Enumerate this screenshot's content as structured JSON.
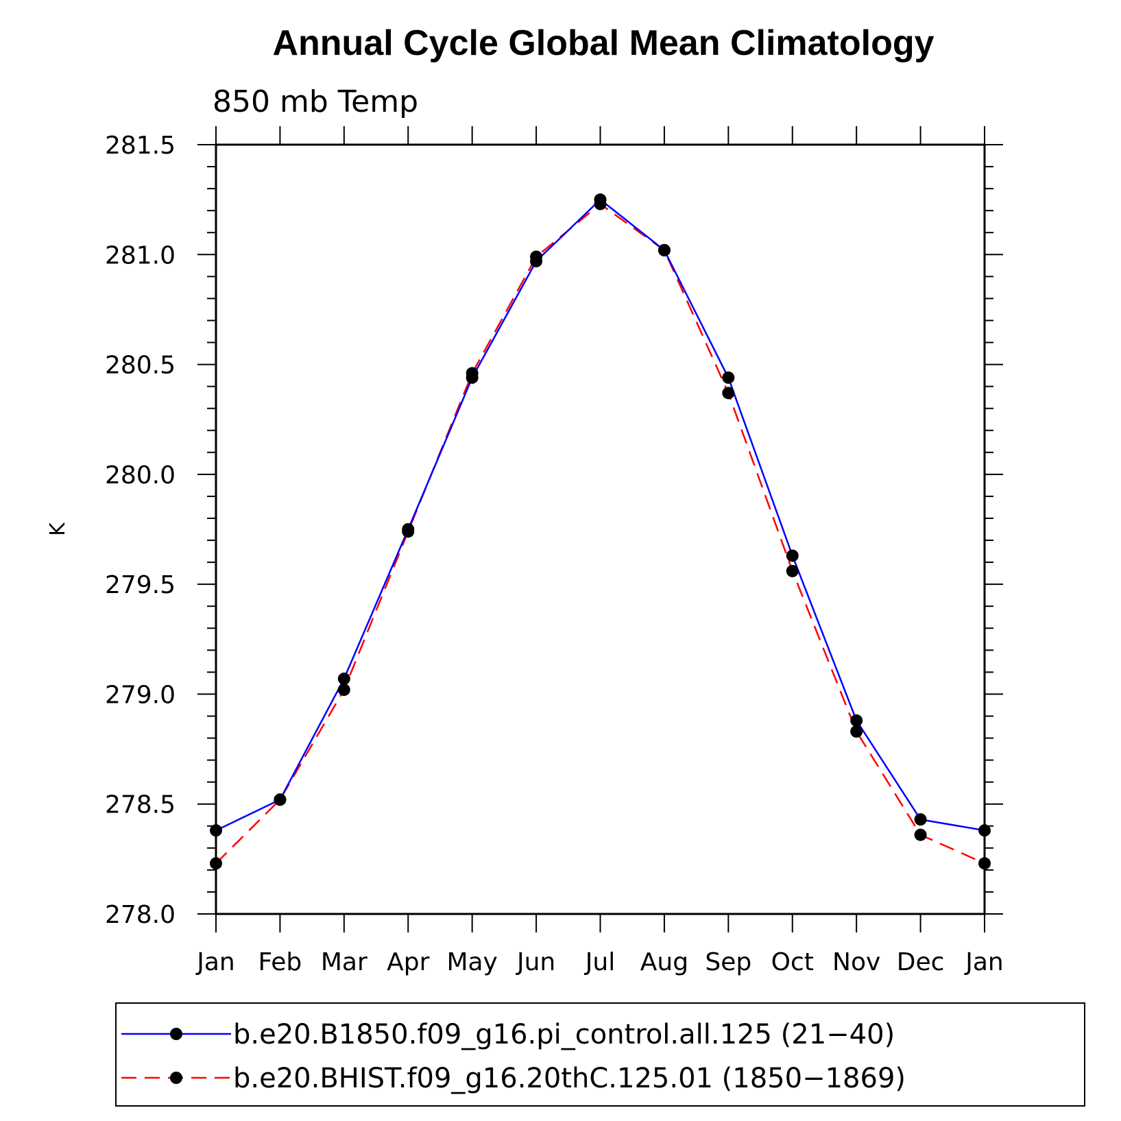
{
  "chart_data": {
    "type": "line",
    "title": "Annual Cycle Global Mean Climatology",
    "subtitle": "850 mb Temp",
    "ylabel": "K",
    "xlabel": "",
    "ylim": [
      278.0,
      281.5
    ],
    "yticks": [
      "278.0",
      "278.5",
      "279.0",
      "279.5",
      "280.0",
      "280.5",
      "281.0",
      "281.5"
    ],
    "categories": [
      "Jan",
      "Feb",
      "Mar",
      "Apr",
      "May",
      "Jun",
      "Jul",
      "Aug",
      "Sep",
      "Oct",
      "Nov",
      "Dec",
      "Jan"
    ],
    "series": [
      {
        "name": "b.e20.B1850.f09_g16.pi_control.all.125 (21−40)",
        "color": "#0000ff",
        "dash": "solid",
        "values": [
          278.38,
          278.52,
          279.07,
          279.75,
          280.44,
          280.97,
          281.25,
          281.02,
          280.44,
          279.63,
          278.88,
          278.43,
          278.38
        ]
      },
      {
        "name": "b.e20.BHIST.f09_g16.20thC.125.01 (1850−1869)",
        "color": "#ff0000",
        "dash": "dashed",
        "values": [
          278.23,
          278.52,
          279.02,
          279.74,
          280.46,
          280.99,
          281.23,
          281.02,
          280.37,
          279.56,
          278.83,
          278.36,
          278.23
        ]
      }
    ],
    "legend_position": "bottom"
  }
}
